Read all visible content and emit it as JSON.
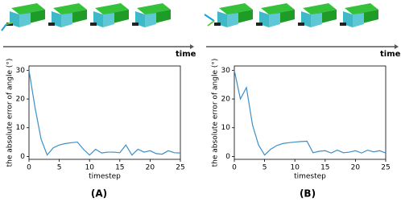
{
  "time_labels": [
    "time",
    "time"
  ],
  "panel_labels": [
    "(A)",
    "(B)"
  ],
  "chart_data": [
    {
      "type": "line",
      "xlabel": "timestep",
      "ylabel": "the absolute error of angle (°)",
      "x": [
        0,
        1,
        2,
        3,
        4,
        5,
        6,
        7,
        8,
        9,
        10,
        11,
        12,
        13,
        14,
        15,
        16,
        17,
        18,
        19,
        20,
        21,
        22,
        23,
        24,
        25
      ],
      "series": [
        {
          "color": "#3d8fc6",
          "values": [
            30,
            17,
            6,
            0.5,
            3,
            4,
            4.5,
            4.8,
            5,
            2.5,
            0.5,
            2.5,
            1.2,
            1.5,
            1.5,
            1.3,
            4,
            0.5,
            2.5,
            1.5,
            2,
            1,
            0.8,
            2,
            1.3,
            1.2
          ]
        }
      ],
      "xlim": [
        0,
        25
      ],
      "ylim": [
        -1,
        31.5
      ],
      "xticks": [
        0,
        5,
        10,
        15,
        20,
        25
      ],
      "yticks": [
        0,
        10,
        20,
        30
      ]
    },
    {
      "type": "line",
      "xlabel": "timestep",
      "ylabel": "the absolute error of angle (°)",
      "x": [
        0,
        1,
        2,
        3,
        4,
        5,
        6,
        7,
        8,
        9,
        10,
        11,
        12,
        13,
        14,
        15,
        16,
        17,
        18,
        19,
        20,
        21,
        22,
        23,
        24,
        25
      ],
      "series": [
        {
          "color": "#3d8fc6",
          "values": [
            30,
            20,
            24,
            11,
            4,
            0.5,
            2.5,
            3.8,
            4.5,
            4.8,
            5,
            5.2,
            5.3,
            1.3,
            1.8,
            2,
            1.2,
            2.2,
            1.3,
            1.5,
            2,
            1.2,
            2.2,
            1.6,
            2,
            1.2
          ]
        }
      ],
      "xlim": [
        0,
        25
      ],
      "ylim": [
        -1,
        31.5
      ],
      "xticks": [
        0,
        5,
        10,
        15,
        20,
        25
      ],
      "yticks": [
        0,
        10,
        20,
        30
      ]
    }
  ]
}
